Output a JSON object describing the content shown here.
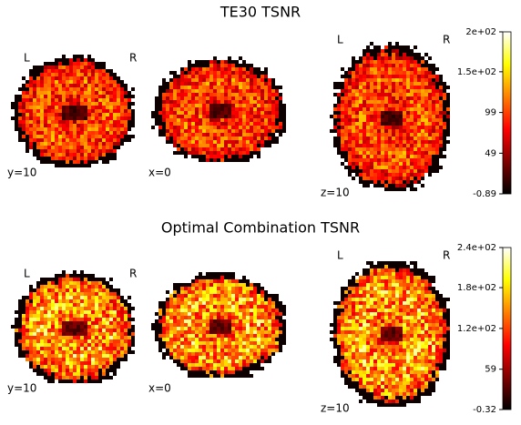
{
  "panels": [
    {
      "title": "TE30 TSNR",
      "views": [
        {
          "coord": "y=10",
          "left": "L",
          "right": "R"
        },
        {
          "coord": "x=0"
        },
        {
          "coord": "z=10",
          "left": "L",
          "right": "R"
        }
      ],
      "colorbar": {
        "lim": [
          -0.89,
          198
        ],
        "ticks": [
          -0.89,
          49,
          99,
          {
            "value": 149,
            "label": "1.5e+02"
          },
          {
            "value": 198,
            "label": "2e+02"
          }
        ]
      }
    },
    {
      "title": "Optimal Combination TSNR",
      "views": [
        {
          "coord": "y=10",
          "left": "L",
          "right": "R"
        },
        {
          "coord": "x=0"
        },
        {
          "coord": "z=10",
          "left": "L",
          "right": "R"
        }
      ],
      "colorbar": {
        "lim": [
          -0.32,
          238
        ],
        "ticks": [
          -0.32,
          59,
          {
            "value": 119,
            "label": "1.2e+02"
          },
          {
            "value": 179,
            "label": "1.8e+02"
          },
          {
            "value": 238,
            "label": "2.4e+02"
          }
        ]
      }
    }
  ]
}
